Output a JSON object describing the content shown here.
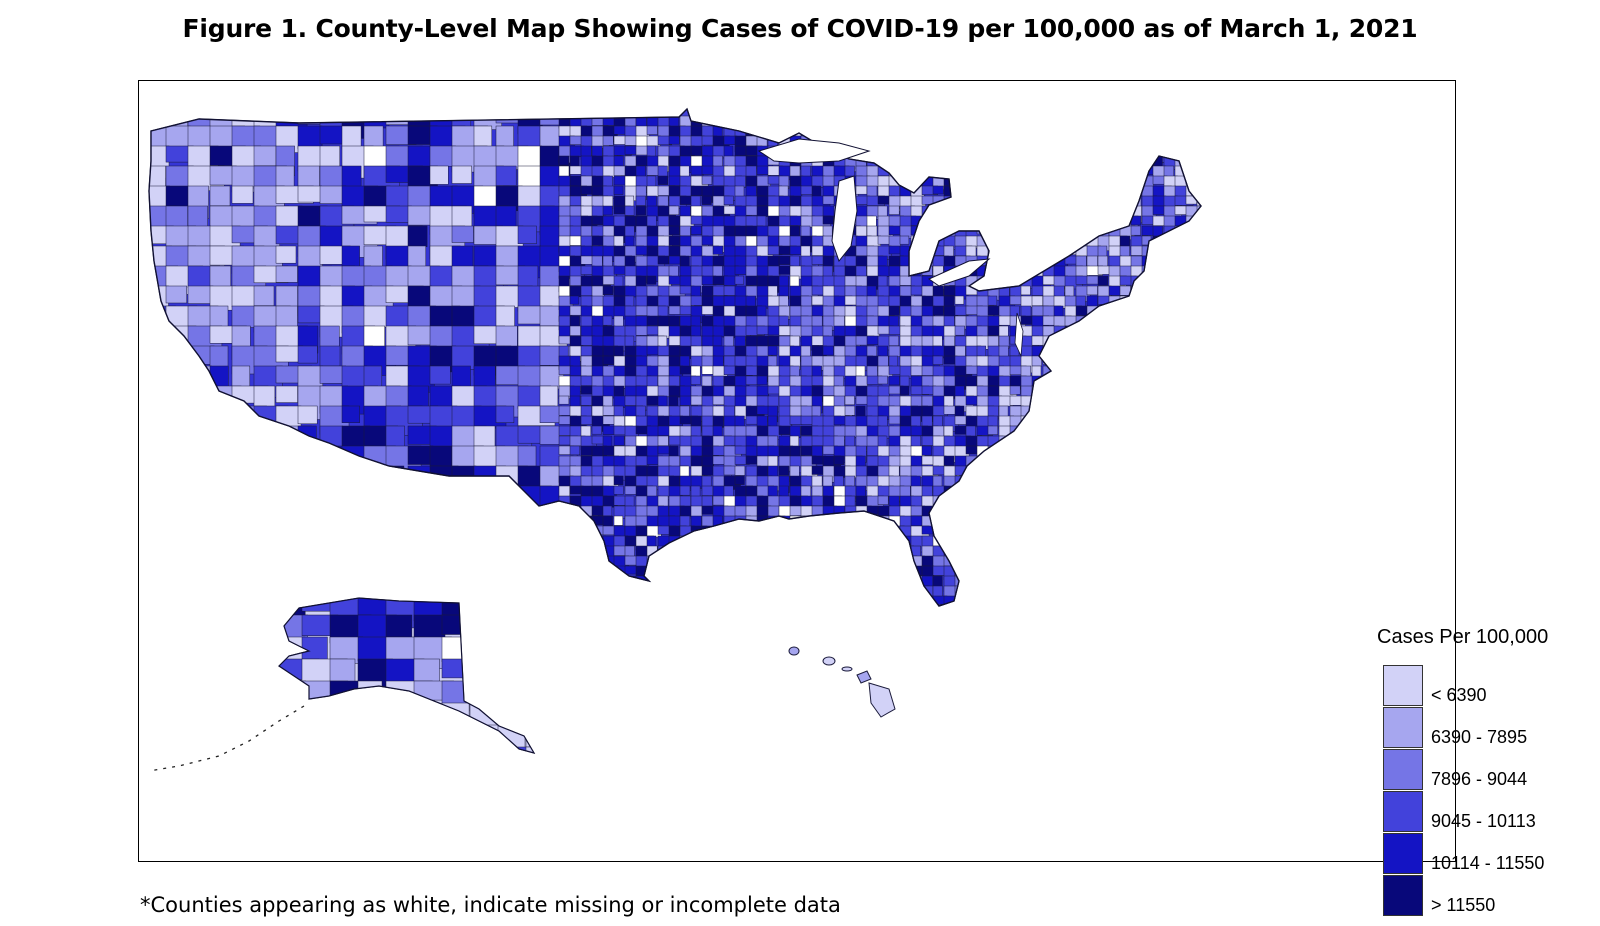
{
  "title": "Figure 1. County-Level Map Showing Cases of COVID-19 per 100,000 as of March 1, 2021",
  "legend": {
    "title": "Cases Per 100,000",
    "bins": [
      {
        "label": "< 6390",
        "color": "#d2d2f7"
      },
      {
        "label": "6390 - 7895",
        "color": "#a6a6ef"
      },
      {
        "label": "7896 - 9044",
        "color": "#7575e6"
      },
      {
        "label": "9045 - 10113",
        "color": "#4242db"
      },
      {
        "label": "10114 - 11550",
        "color": "#1414c4"
      },
      {
        "label": "> 11550",
        "color": "#08087a"
      }
    ]
  },
  "footnote": "*Counties appearing as white, indicate missing or incomplete data",
  "map": {
    "regions": [
      "Contiguous United States",
      "Alaska",
      "Hawaii"
    ],
    "missing_data_color": "#ffffff",
    "border_color": "#1a1a3a"
  }
}
